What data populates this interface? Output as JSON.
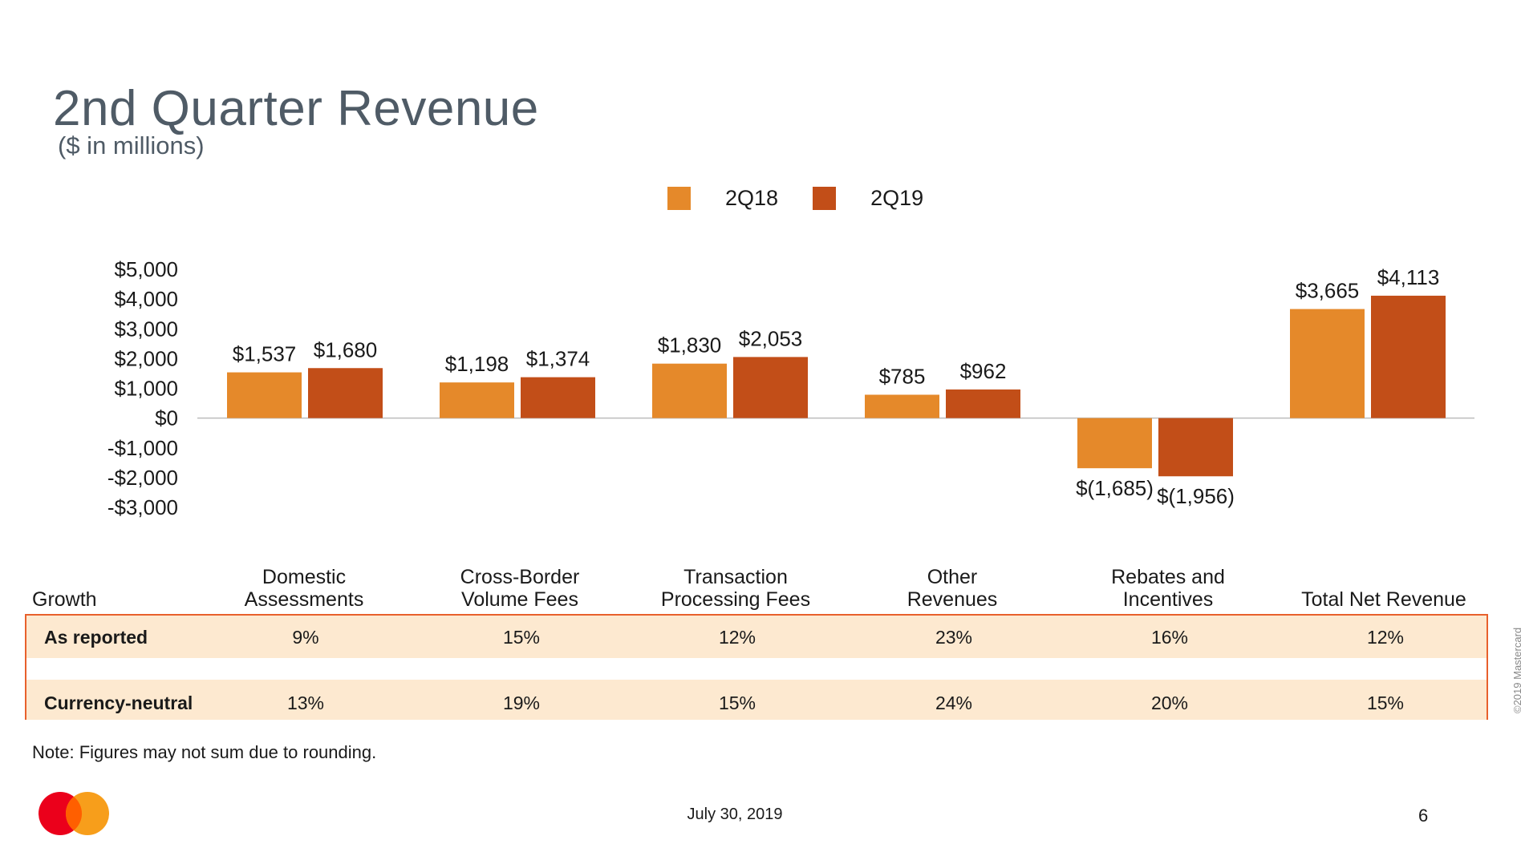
{
  "title": "2nd Quarter Revenue",
  "subtitle": "($ in millions)",
  "legend": [
    {
      "label": "2Q18",
      "color": "#e5892a"
    },
    {
      "label": "2Q19",
      "color": "#c24e18"
    }
  ],
  "chart_data": {
    "type": "bar",
    "title": "2nd Quarter Revenue",
    "subtitle": "($ in millions)",
    "categories": [
      "Domestic Assessments",
      "Cross-Border Volume Fees",
      "Transaction Processing Fees",
      "Other Revenues",
      "Rebates and Incentives",
      "Total Net Revenue"
    ],
    "series": [
      {
        "name": "2Q18",
        "color": "#e5892a",
        "values": [
          1537,
          1198,
          1830,
          785,
          -1685,
          3665
        ],
        "labels": [
          "$1,537",
          "$1,198",
          "$1,830",
          "$785",
          "$(1,685)",
          "$3,665"
        ]
      },
      {
        "name": "2Q19",
        "color": "#c24e18",
        "values": [
          1680,
          1374,
          2053,
          962,
          -1956,
          4113
        ],
        "labels": [
          "$1,680",
          "$1,374",
          "$2,053",
          "$962",
          "$(1,956)",
          "$4,113"
        ]
      }
    ],
    "y_ticks": [
      5000,
      4000,
      3000,
      2000,
      1000,
      0,
      -1000,
      -2000,
      -3000
    ],
    "y_tick_labels": [
      "$5,000",
      "$4,000",
      "$3,000",
      "$2,000",
      "$1,000",
      "$0",
      "-$1,000",
      "-$2,000",
      "-$3,000"
    ],
    "ylim": [
      -3000,
      5000
    ],
    "grid": false,
    "legend_position": "top-center"
  },
  "growth": {
    "header": "Growth",
    "columns": [
      [
        "Domestic",
        "Assessments"
      ],
      [
        "Cross-Border",
        "Volume Fees"
      ],
      [
        "Transaction",
        "Processing Fees"
      ],
      [
        "Other",
        "Revenues"
      ],
      [
        "Rebates and",
        "Incentives"
      ],
      [
        "",
        "Total Net Revenue"
      ]
    ],
    "rows": [
      {
        "label": "As reported",
        "values": [
          "9%",
          "15%",
          "12%",
          "23%",
          "16%",
          "12%"
        ]
      },
      {
        "label": "Currency-neutral",
        "values": [
          "13%",
          "19%",
          "15%",
          "24%",
          "20%",
          "15%"
        ]
      }
    ]
  },
  "note": "Note: Figures may not sum due to rounding.",
  "footer": {
    "date": "July 30, 2019",
    "page": "6",
    "copyright": "©2019 Mastercard"
  },
  "logo": {
    "name": "Mastercard",
    "colors": [
      "#eb001b",
      "#f79e1b",
      "#ff5f00"
    ]
  }
}
